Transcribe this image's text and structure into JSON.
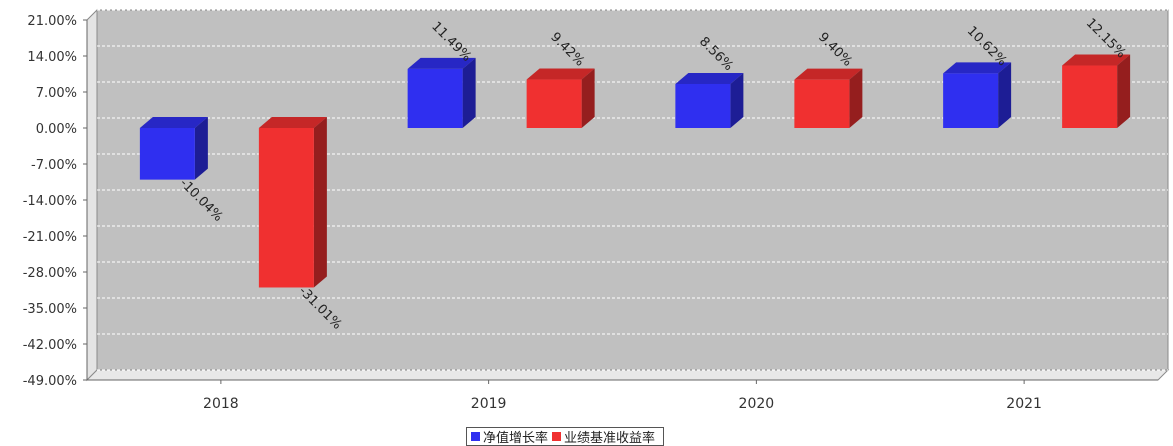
{
  "chart_data": {
    "type": "bar",
    "categories": [
      "2018",
      "2019",
      "2020",
      "2021"
    ],
    "series": [
      {
        "name": "净值增长率",
        "color": "#2f2ff0",
        "values": [
          -10.04,
          11.49,
          8.56,
          10.62
        ],
        "labels": [
          "-10.04%",
          "11.49%",
          "8.56%",
          "10.62%"
        ]
      },
      {
        "name": "业绩基准收益率",
        "color": "#f03030",
        "values": [
          -31.01,
          9.42,
          9.4,
          12.15
        ],
        "labels": [
          "-31.01%",
          "9.42%",
          "9.40%",
          "12.15%"
        ]
      }
    ],
    "yticks": [
      "21.00%",
      "14.00%",
      "7.00%",
      "0.00%",
      "-7.00%",
      "-14.00%",
      "-21.00%",
      "-28.00%",
      "-35.00%",
      "-42.00%",
      "-49.00%"
    ],
    "ylim": [
      -49,
      21
    ],
    "grid": true,
    "legend_position": "bottom-center",
    "background_color": "#c0c0c0"
  }
}
